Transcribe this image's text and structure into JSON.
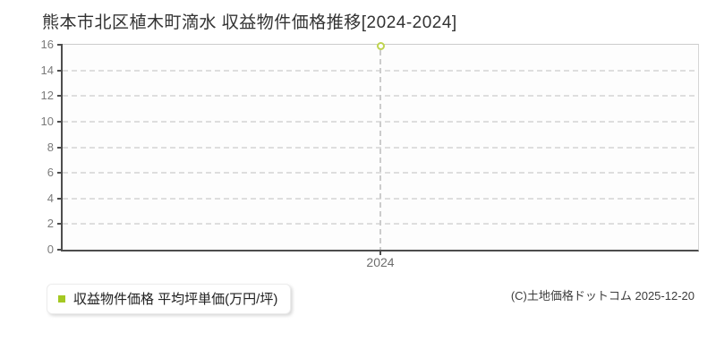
{
  "title": "熊本市北区植木町滴水 収益物件価格推移[2024-2024]",
  "legend": {
    "label": "収益物件価格 平均坪単価(万円/坪)",
    "marker_color": "#a4c822"
  },
  "copyright": "(C)土地価格ドットコム 2025-12-20",
  "chart_data": {
    "type": "scatter",
    "title": "熊本市北区植木町滴水 収益物件価格推移[2024-2024]",
    "series": [
      {
        "name": "収益物件価格 平均坪単価(万円/坪)",
        "x": [
          2024
        ],
        "values": [
          15.9
        ]
      }
    ],
    "xticklabels": [
      "2024"
    ],
    "yticks": [
      0,
      2,
      4,
      6,
      8,
      10,
      12,
      14,
      16
    ],
    "ylim": [
      0,
      16
    ],
    "grid": "horizontal-dashed",
    "legend_position": "bottom-left",
    "point_color": "#bfd44f",
    "point_fill": "#ffffff"
  }
}
